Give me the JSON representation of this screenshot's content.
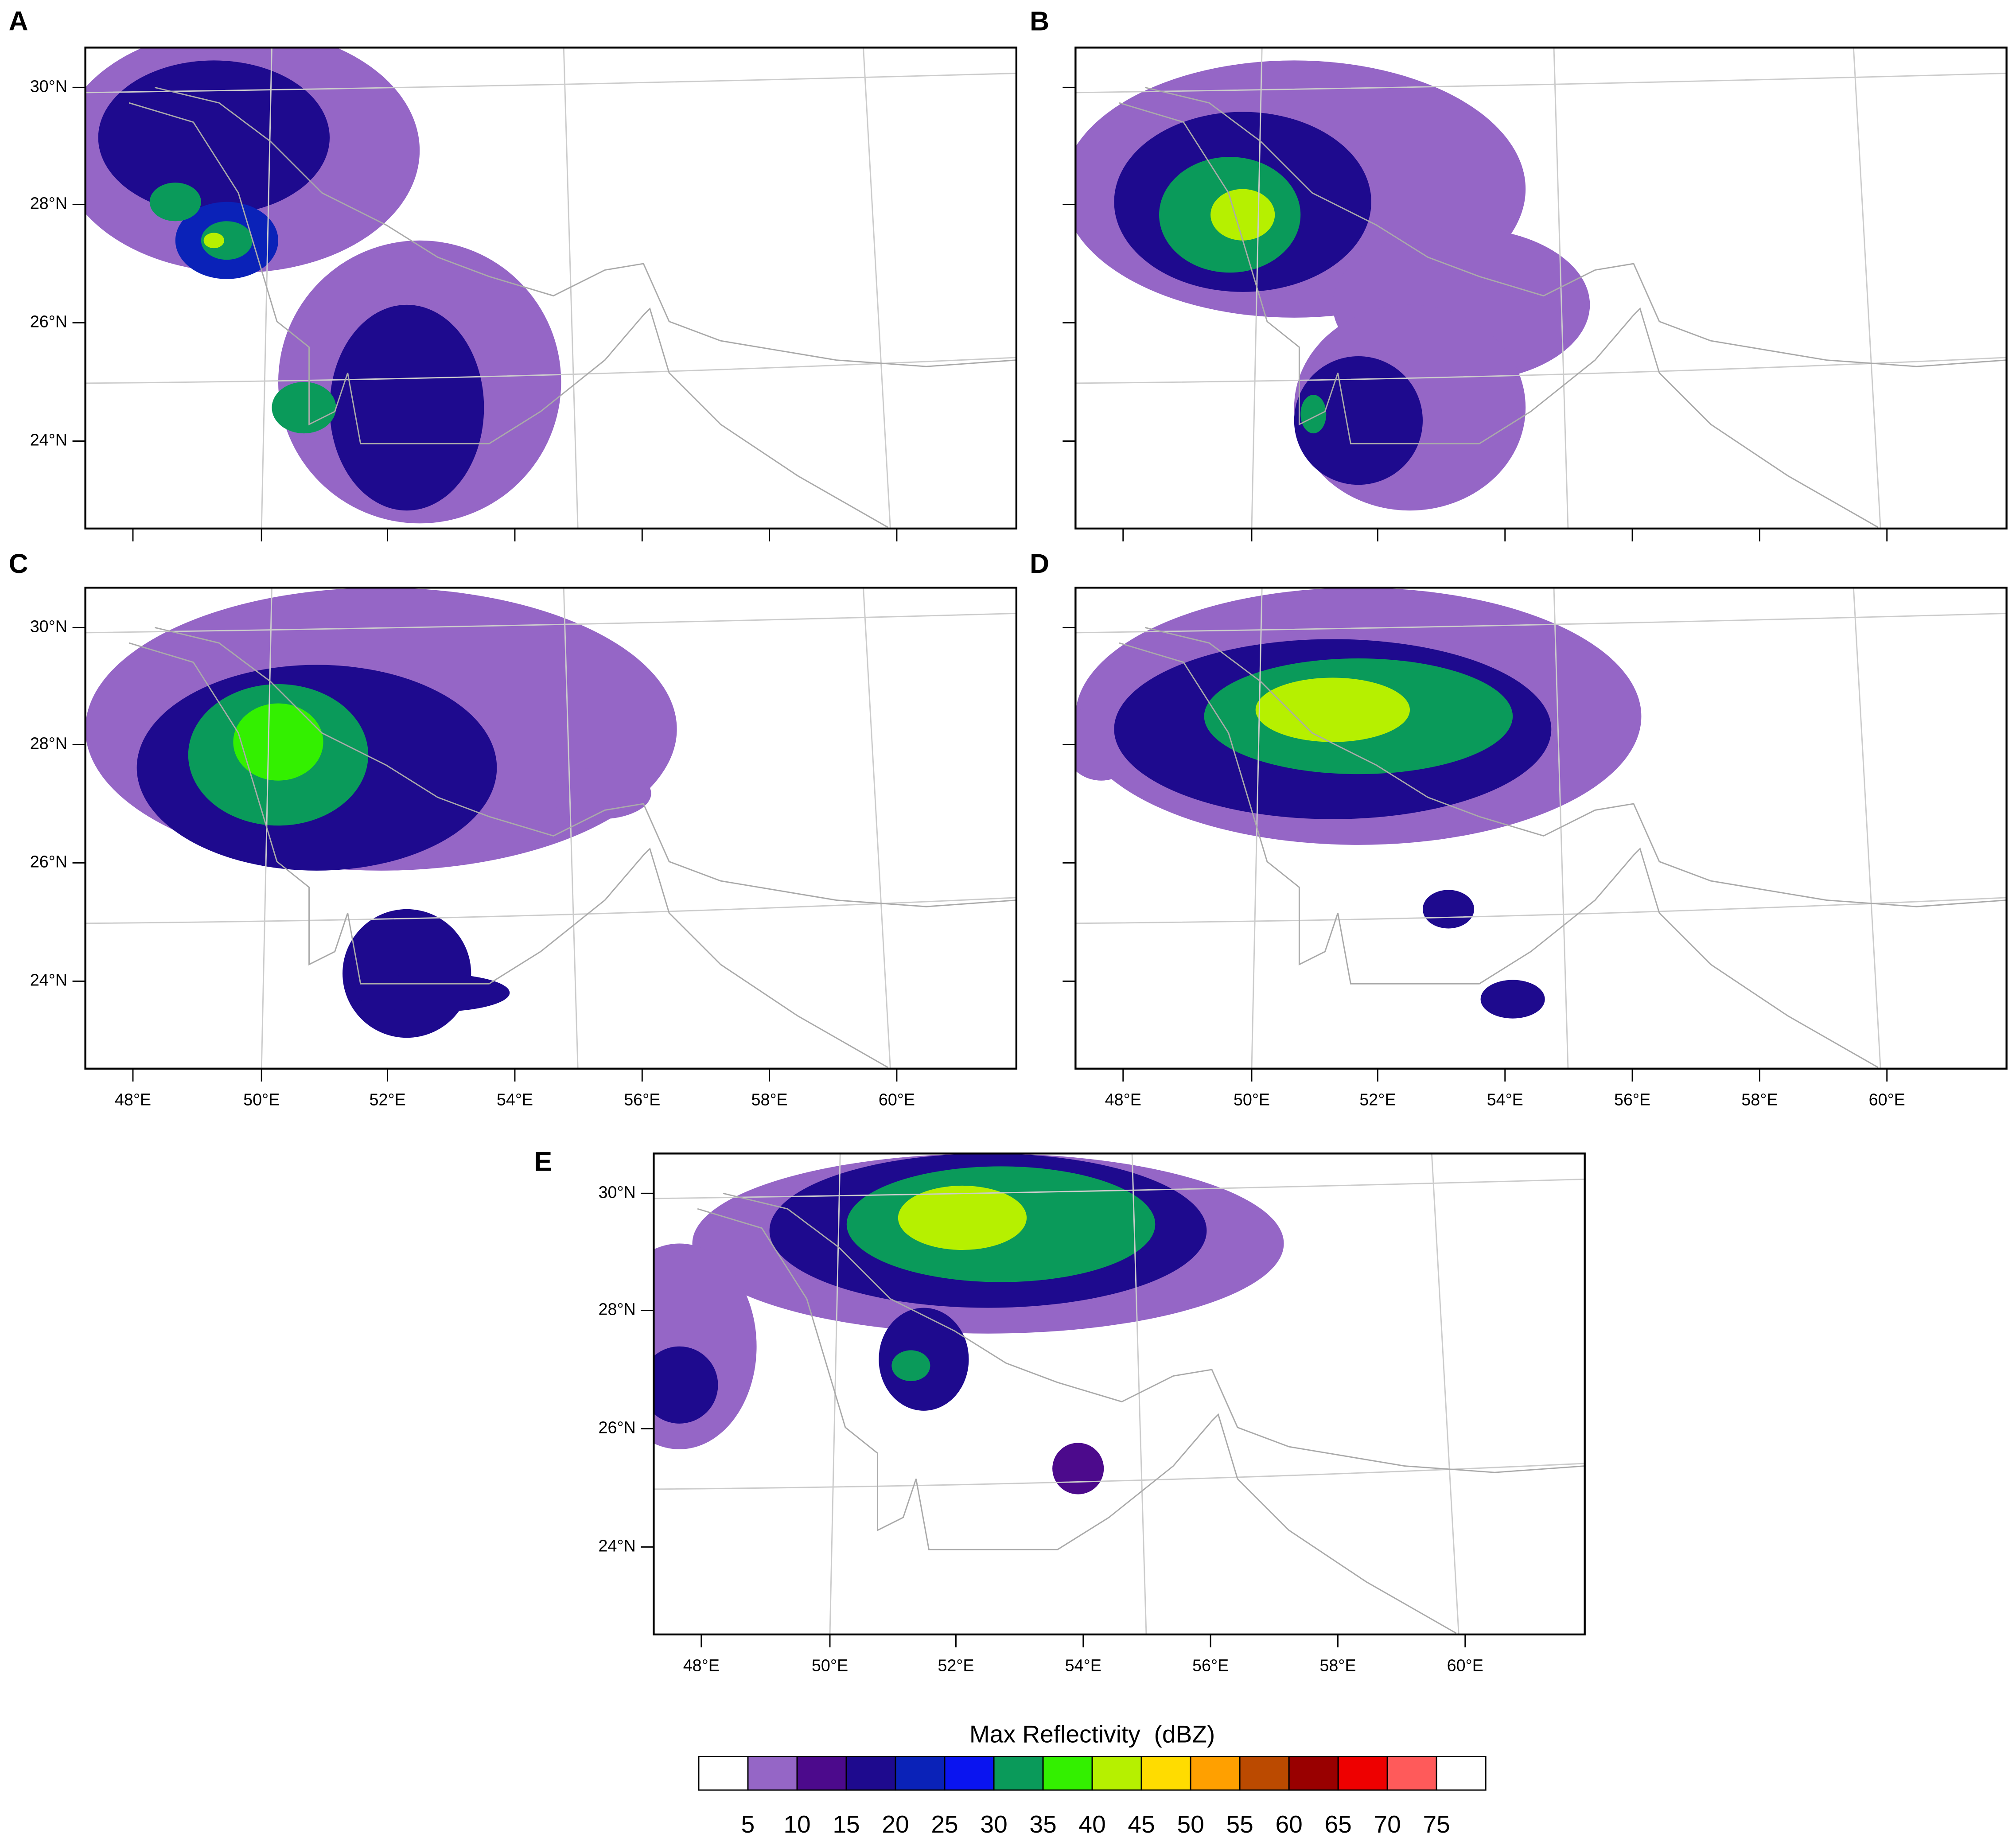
{
  "panels": [
    {
      "label": "A"
    },
    {
      "label": "B"
    },
    {
      "label": "C"
    },
    {
      "label": "D"
    },
    {
      "label": "E"
    }
  ],
  "lat_labels": [
    "30°N",
    "28°N",
    "26°N",
    "24°N"
  ],
  "lon_labels": [
    "48°E",
    "50°E",
    "52°E",
    "54°E",
    "56°E",
    "58°E",
    "60°E"
  ],
  "colorbar": {
    "title": "Max Reflectivity  (dBZ)",
    "levels": [
      5,
      10,
      15,
      20,
      25,
      30,
      35,
      40,
      45,
      50,
      55,
      60,
      65,
      70,
      75
    ],
    "colors": [
      "#ffffff",
      "#9566c6",
      "#4c0a8c",
      "#1e0a8e",
      "#0a22b8",
      "#0a14f0",
      "#0a9a5a",
      "#33f000",
      "#b6f000",
      "#ffdc00",
      "#ffa000",
      "#bb4a00",
      "#990000",
      "#ee0000",
      "#ff5a5a",
      "#ffffff"
    ]
  }
}
